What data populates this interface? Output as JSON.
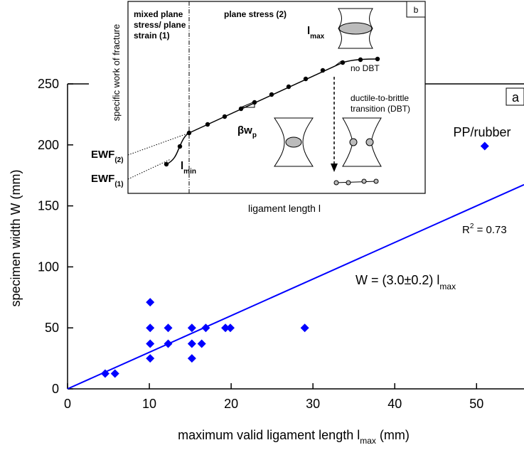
{
  "chart_data": {
    "type": "scatter",
    "x_label": {
      "text": "maximum valid ligament length l",
      "sub": "max",
      "tail": " (mm)"
    },
    "y_label": "specimen width W (mm)",
    "panel_label": "a",
    "xlim": [
      0,
      55.8
    ],
    "ylim": [
      0,
      250
    ],
    "xticks": [
      0,
      10,
      20,
      30,
      40,
      50
    ],
    "yticks": [
      0,
      50,
      100,
      150,
      200,
      250
    ],
    "series": [
      {
        "color": "#0000ff",
        "x": [
          4.6,
          5.8,
          10.1,
          10.1,
          10.1,
          10.1,
          12.3,
          12.3,
          15.2,
          15.2,
          15.2,
          16.4,
          16.9,
          19.3,
          19.9,
          29,
          51
        ],
        "y": [
          12.5,
          12.5,
          25,
          37,
          50,
          71,
          37,
          50,
          25,
          37,
          50,
          37,
          50,
          50,
          50,
          50,
          199
        ]
      }
    ],
    "fit": {
      "color": "#0000ff",
      "x": [
        0,
        55.8
      ],
      "y": [
        0,
        167.4
      ]
    },
    "annotations": {
      "point_label": "PP/rubber",
      "r2": {
        "text": "R",
        "sup": "2",
        "tail": " = 0.73"
      },
      "equation": {
        "text": "W = (3.0±0.2) l",
        "sub": "max"
      }
    },
    "inset": {
      "panel_label": "b",
      "y_label": "specific work of fracture",
      "x_label": "ligament length l",
      "region1": [
        "mixed plane",
        "stress/ plane",
        "strain (1)"
      ],
      "region2": "plane stress (2)",
      "lmax": {
        "text": "l",
        "sub": "max"
      },
      "lmin": {
        "text": "l",
        "sub": "min"
      },
      "slope": {
        "text": "βw",
        "sub": "p"
      },
      "ewf2": {
        "text": "EWF",
        "sub": "(2)"
      },
      "ewf1": {
        "text": "EWF",
        "sub": "(1)"
      },
      "no_dbt": "no DBT",
      "dbt": [
        "ductile-to-brittle",
        "transition (DBT)"
      ]
    }
  }
}
